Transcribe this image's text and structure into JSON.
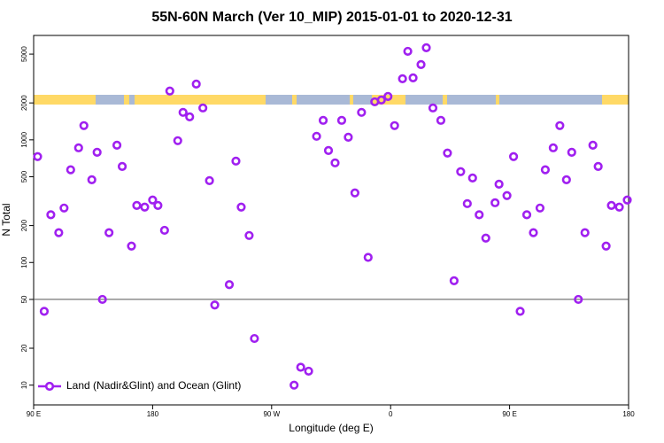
{
  "chart_data": {
    "type": "scatter",
    "title": "55N-60N March (Ver 10_MIP)   2015-01-01 to 2020-12-31",
    "x_label": "Longitude (deg E)",
    "y_label": "N Total",
    "yscale": "log",
    "xlim": [
      90,
      540
    ],
    "xticks": [
      {
        "value": 90,
        "label": "90 E"
      },
      180,
      {
        "value": 270,
        "label": "90 W"
      },
      {
        "value": 360,
        "label": "0"
      },
      {
        "value": 450,
        "label": "90 E"
      },
      {
        "value": 540,
        "label": "180"
      }
    ],
    "ylim": [
      6.9,
      7100
    ],
    "yticks": [
      10,
      20,
      50,
      100,
      200,
      500,
      1000,
      2000,
      5000
    ],
    "hline": 50,
    "legend": "lower left",
    "series": [
      {
        "name": "Land (Nadir&Glint) and Ocean (Glint)",
        "color": "#a020f0",
        "x": [
          93,
          98,
          103,
          109,
          113,
          118,
          124,
          128,
          134,
          138,
          142,
          147,
          153,
          157,
          164,
          168,
          174,
          180,
          184,
          189,
          193,
          199,
          203,
          208,
          213,
          218,
          223,
          227,
          238,
          243,
          247,
          253,
          257,
          287,
          292,
          298,
          304,
          309,
          313,
          318,
          323,
          328,
          333,
          338,
          343,
          348,
          353,
          358,
          363,
          369,
          373,
          377,
          383,
          387,
          392,
          398,
          403,
          408,
          413,
          418,
          422,
          427,
          432,
          439,
          442,
          448,
          453,
          458,
          463,
          468,
          473,
          477,
          483,
          488,
          493,
          497,
          502,
          507,
          513,
          517,
          523,
          527,
          533,
          539
        ],
        "values": [
          730,
          40,
          245,
          175,
          278,
          570,
          861,
          1306,
          473,
          792,
          50,
          175,
          905,
          607,
          136,
          292,
          283,
          323,
          292,
          183,
          2500,
          984,
          1675,
          1541,
          2850,
          1820,
          465,
          45,
          66,
          671,
          283,
          166,
          24,
          10,
          14,
          13,
          1069,
          1442,
          819,
          649,
          1442,
          1051,
          369,
          1675,
          110,
          2042,
          2113,
          2259,
          1306,
          3150,
          5270,
          3200,
          4110,
          5640,
          1820,
          1442,
          780,
          71,
          550,
          302,
          489,
          245,
          158,
          307,
          435,
          351,
          730,
          40,
          245,
          175,
          278,
          570,
          861,
          1306,
          473,
          792,
          50,
          175,
          905,
          607,
          136,
          292,
          283,
          323
        ]
      }
    ]
  }
}
